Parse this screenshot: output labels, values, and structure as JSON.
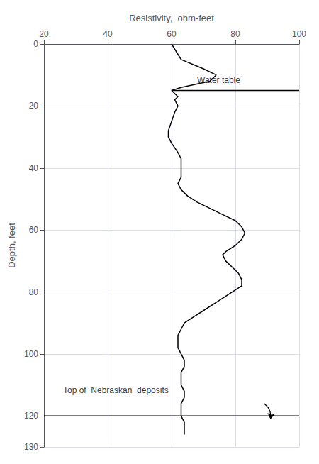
{
  "chart_data": {
    "type": "line",
    "xlabel": "Resistivity,  ohm-feet",
    "ylabel": "Depth, feet",
    "xlim": [
      20,
      100
    ],
    "ylim": [
      130,
      0
    ],
    "xticks": [
      20,
      40,
      60,
      80,
      100
    ],
    "yticks": [
      0,
      20,
      40,
      60,
      80,
      100,
      120
    ],
    "grid": true,
    "color": "#000000",
    "x": [
      60,
      63,
      70,
      74,
      72,
      63,
      60,
      62,
      61,
      62,
      61,
      60,
      59,
      59,
      60,
      62,
      63,
      63,
      63,
      63,
      62,
      63,
      65,
      68,
      72,
      76,
      80,
      82,
      83,
      82,
      80,
      77,
      76,
      77,
      79,
      81,
      82,
      82,
      79,
      76,
      73,
      70,
      67,
      64,
      63,
      62,
      62,
      62,
      63,
      64,
      64,
      63,
      63,
      63,
      64,
      64,
      63,
      63,
      63,
      64,
      64
    ],
    "values": [
      0,
      5,
      8,
      10,
      12,
      14,
      15,
      17,
      18,
      20,
      22,
      25,
      28,
      30,
      32,
      35,
      37,
      39,
      41,
      43,
      45,
      47,
      49,
      51,
      53,
      55,
      57,
      59,
      61,
      63,
      65,
      67,
      68,
      70,
      72,
      74,
      76,
      78,
      80,
      82,
      84,
      86,
      88,
      90,
      92,
      94,
      96,
      98,
      100,
      102,
      104,
      106,
      108,
      110,
      112,
      114,
      116,
      118,
      120,
      122,
      126
    ],
    "annotations": [
      {
        "type": "hline",
        "y": 15,
        "xmin": 60,
        "xmax": 100
      },
      {
        "type": "text",
        "text": "Water table",
        "x": 68,
        "y": 13
      },
      {
        "type": "hline",
        "y": 120,
        "xmin": 20,
        "xmax": 100
      },
      {
        "type": "text",
        "text": "Top of  Nebraskan  deposits",
        "x": 26,
        "y": 113
      },
      {
        "type": "arrow",
        "x": 89,
        "y": 116,
        "x_end": 91,
        "y_end": 121
      }
    ]
  }
}
